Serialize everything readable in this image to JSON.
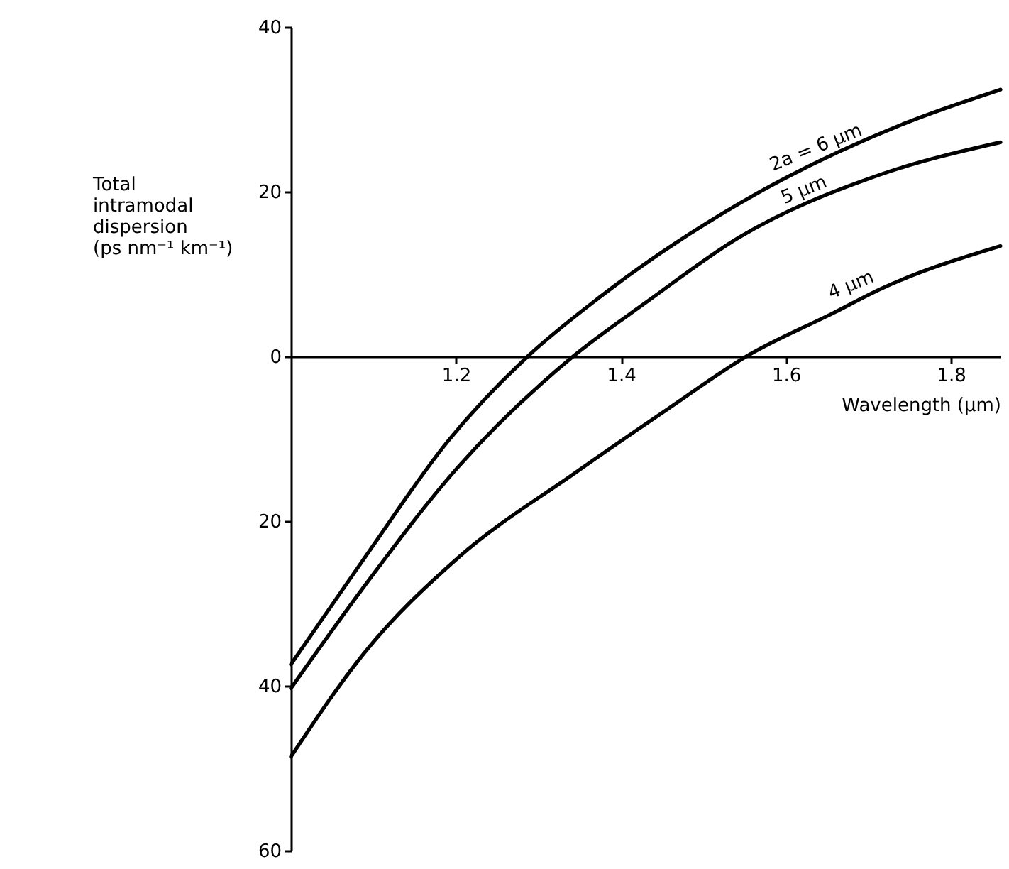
{
  "chart_data": {
    "type": "line",
    "xlabel": "Wavelength (µm)",
    "ylabel": "Total\nintramodal\ndispersion\n(ps nm⁻¹ km⁻¹)",
    "xlim": [
      1.0,
      1.86
    ],
    "xticks": [
      1.2,
      1.4,
      1.6,
      1.8
    ],
    "ylim": [
      -60,
      40
    ],
    "yticks": [
      40,
      20,
      0,
      {
        "value": -20,
        "label": "20"
      },
      {
        "value": -40,
        "label": "40"
      },
      {
        "value": -60,
        "label": "60"
      }
    ],
    "marker": "none",
    "line_style": "solid",
    "series": [
      {
        "name": "2a = 6 µm",
        "color": "#000000",
        "x": [
          1.0,
          1.089,
          1.191,
          1.287,
          1.373,
          1.544,
          1.744,
          1.86
        ],
        "values": [
          -37.4,
          -24.5,
          -10.2,
          0,
          7.1,
          18.6,
          28.3,
          32.4
        ]
      },
      {
        "name": "5 µm",
        "color": "#000000",
        "x": [
          1.0,
          1.089,
          1.202,
          1.342,
          1.431,
          1.544,
          1.715,
          1.86
        ],
        "values": [
          -40.3,
          -27.9,
          -13.5,
          0,
          6.6,
          14.5,
          22.1,
          26.0
        ]
      },
      {
        "name": "4 µm",
        "color": "#000000",
        "x": [
          1.0,
          1.089,
          1.202,
          1.345,
          1.458,
          1.552,
          1.658,
          1.715,
          1.86
        ],
        "values": [
          -48.6,
          -36.0,
          -24.5,
          -14.1,
          -6.3,
          0,
          5.3,
          8.2,
          13.4
        ]
      }
    ]
  }
}
